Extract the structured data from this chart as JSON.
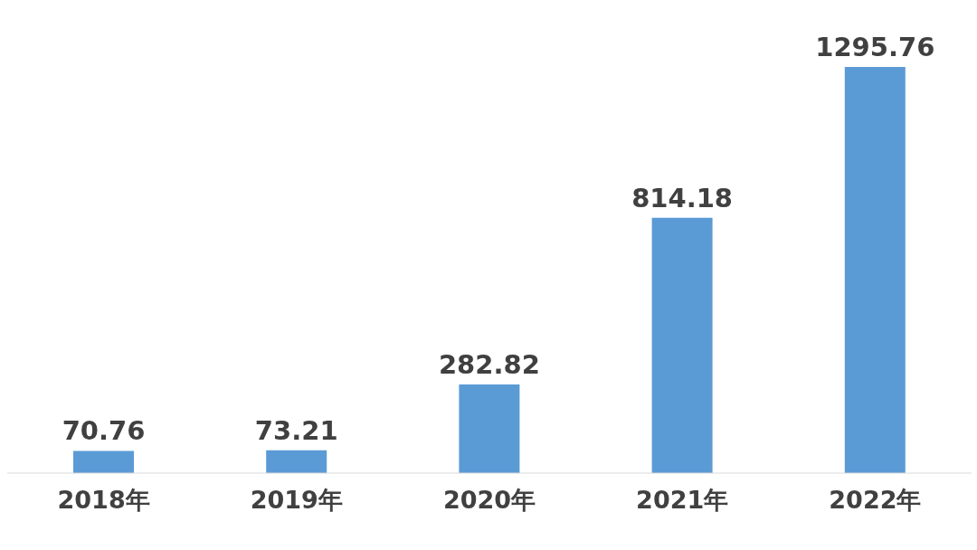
{
  "chart_data": {
    "type": "bar",
    "categories": [
      "2018年",
      "2019年",
      "2020年",
      "2021年",
      "2022年"
    ],
    "values": [
      70.76,
      73.21,
      282.82,
      814.18,
      1295.76
    ],
    "color": "#5b9bd5",
    "data_labels": true,
    "grid": false,
    "legend": false
  }
}
